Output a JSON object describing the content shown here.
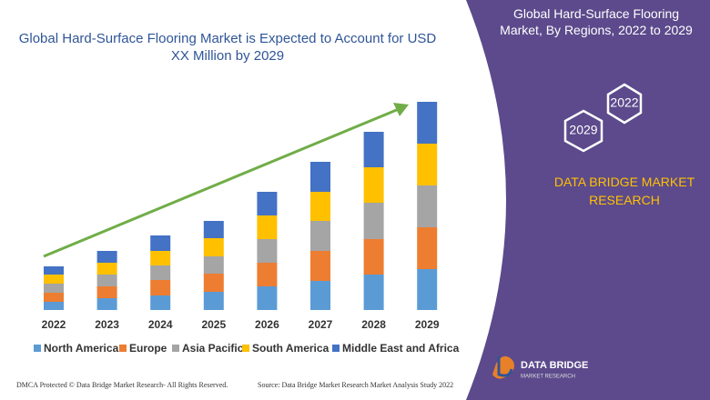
{
  "chart_data": {
    "type": "stacked_bar",
    "title": "Global Hard-Surface Flooring Market is Expected to Account for USD XX Million by 2029",
    "categories": [
      "2022",
      "2023",
      "2024",
      "2025",
      "2026",
      "2027",
      "2028",
      "2029"
    ],
    "series": [
      {
        "name": "North America",
        "color": "#5b9bd5",
        "values": [
          9,
          13,
          16,
          20,
          26,
          32,
          39,
          45
        ]
      },
      {
        "name": "Europe",
        "color": "#ed7d31",
        "values": [
          10,
          13,
          17,
          20,
          26,
          33,
          39,
          46
        ]
      },
      {
        "name": "Asia Pacific",
        "color": "#a5a5a5",
        "values": [
          10,
          13,
          16,
          19,
          26,
          33,
          40,
          46
        ]
      },
      {
        "name": "South America",
        "color": "#ffc000",
        "values": [
          10,
          13,
          16,
          20,
          26,
          32,
          39,
          46
        ]
      },
      {
        "name": "Middle East and Africa",
        "color": "#4472c4",
        "values": [
          9,
          13,
          17,
          19,
          26,
          33,
          39,
          46
        ]
      }
    ]
  },
  "side_panel": {
    "title": "Global Hard-Surface Flooring Market, By Regions, 2022 to 2029",
    "hexagons": [
      "2022",
      "2029"
    ],
    "brand": "DATA BRIDGE MARKET RESEARCH"
  },
  "logo": {
    "line1": "DATA BRIDGE",
    "line2": "MARKET RESEARCH"
  },
  "footer": {
    "left": "DMCA Protected © Data Bridge Market Research- All Rights Reserved.",
    "right": "Source: Data Bridge Market Research Market Analysis Study 2022"
  }
}
